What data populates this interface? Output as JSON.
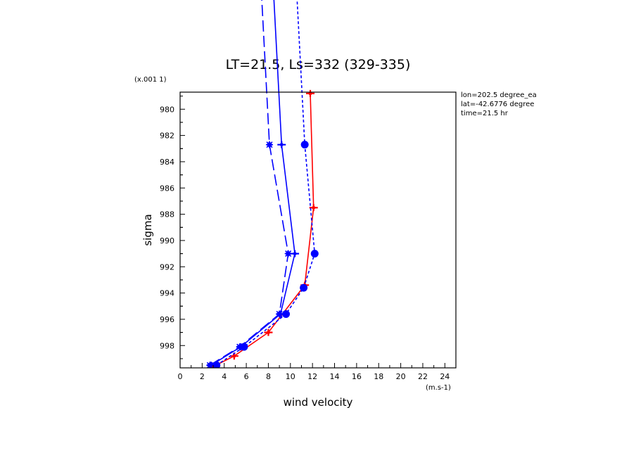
{
  "chart_data": {
    "type": "line",
    "title": "LT=21.5, Ls=332 (329-335)",
    "xlabel": "wind velocity",
    "ylabel": "sigma",
    "x_units": "(m.s-1)",
    "y_scale_note": "(x.001 1)",
    "xlim": [
      0,
      25
    ],
    "ylim": [
      999.7,
      978.7
    ],
    "y_inverted": true,
    "x_ticks": [
      0,
      2,
      4,
      6,
      8,
      10,
      12,
      14,
      16,
      18,
      20,
      22,
      24
    ],
    "y_ticks": [
      980,
      982,
      984,
      986,
      988,
      990,
      992,
      994,
      996,
      998
    ],
    "annotations": [
      "lon=202.5 degree_ea",
      "lat=-42.6776 degree",
      "time=21.5 hr"
    ],
    "series": [
      {
        "color": "#ff0000",
        "style": "solid",
        "marker": "cross",
        "points": [
          {
            "x": 3.0,
            "y": 999.6
          },
          {
            "x": 4.9,
            "y": 998.8
          },
          {
            "x": 8.0,
            "y": 997.0
          },
          {
            "x": 11.3,
            "y": 993.4
          },
          {
            "x": 12.1,
            "y": 987.5
          },
          {
            "x": 11.8,
            "y": 978.8
          }
        ]
      },
      {
        "color": "#0000ff",
        "style": "solid",
        "marker": "cross",
        "points": [
          {
            "x": 2.8,
            "y": 999.5
          },
          {
            "x": 5.5,
            "y": 998.1
          },
          {
            "x": 9.1,
            "y": 995.6
          },
          {
            "x": 10.4,
            "y": 991.0
          },
          {
            "x": 9.2,
            "y": 982.7
          },
          {
            "x": 8.4,
            "y": 970.0
          }
        ]
      },
      {
        "color": "#0000ff",
        "style": "longdash",
        "marker": "star",
        "points": [
          {
            "x": 2.7,
            "y": 999.5
          },
          {
            "x": 5.4,
            "y": 998.1
          },
          {
            "x": 9.0,
            "y": 995.6
          },
          {
            "x": 9.8,
            "y": 991.0
          },
          {
            "x": 8.1,
            "y": 982.7
          },
          {
            "x": 7.3,
            "y": 970.0
          }
        ]
      },
      {
        "color": "#0000ff",
        "style": "shortdash",
        "marker": "circle",
        "points": [
          {
            "x": 3.3,
            "y": 999.5
          },
          {
            "x": 5.8,
            "y": 998.1
          },
          {
            "x": 9.6,
            "y": 995.6
          },
          {
            "x": 11.2,
            "y": 993.6
          },
          {
            "x": 12.2,
            "y": 991.0
          },
          {
            "x": 11.3,
            "y": 982.7
          },
          {
            "x": 10.5,
            "y": 970.0
          }
        ]
      }
    ]
  }
}
